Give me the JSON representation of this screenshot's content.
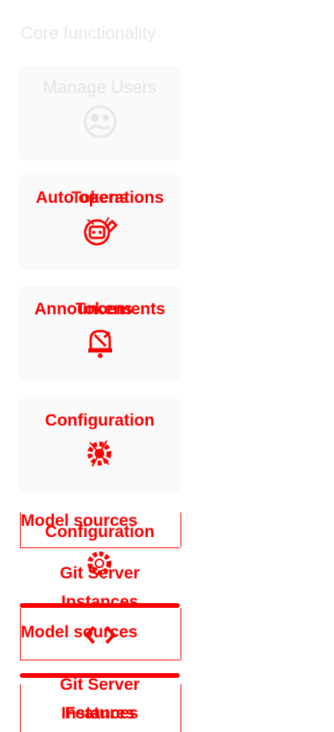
{
  "section": {
    "title": "Core functionality"
  },
  "cards": {
    "manage_users": "Manage Users",
    "auto_operations": "Auto operations",
    "tokens": "Tokens",
    "announcements": "Announcements",
    "fe_tokens": "Tokens",
    "configuration": "Configuration",
    "configuration_overlay": "Configuration",
    "model_sources": "Model sources",
    "git_server_instances_line1": "Git Server",
    "git_server_instances_line2": "Instances",
    "features": "Features",
    "instances": "Instances"
  },
  "icons": {
    "manage_users": "account-circle-icon",
    "auto_operations": "robot-icon",
    "tokens": "key-icon",
    "announcements": "bell-icon",
    "configuration": "gear-icon",
    "model_sources": "code-icon"
  },
  "colors": {
    "overlay": "#ff0000",
    "muted_text": "#e4e4e4",
    "card_bg": "#fafafa"
  }
}
